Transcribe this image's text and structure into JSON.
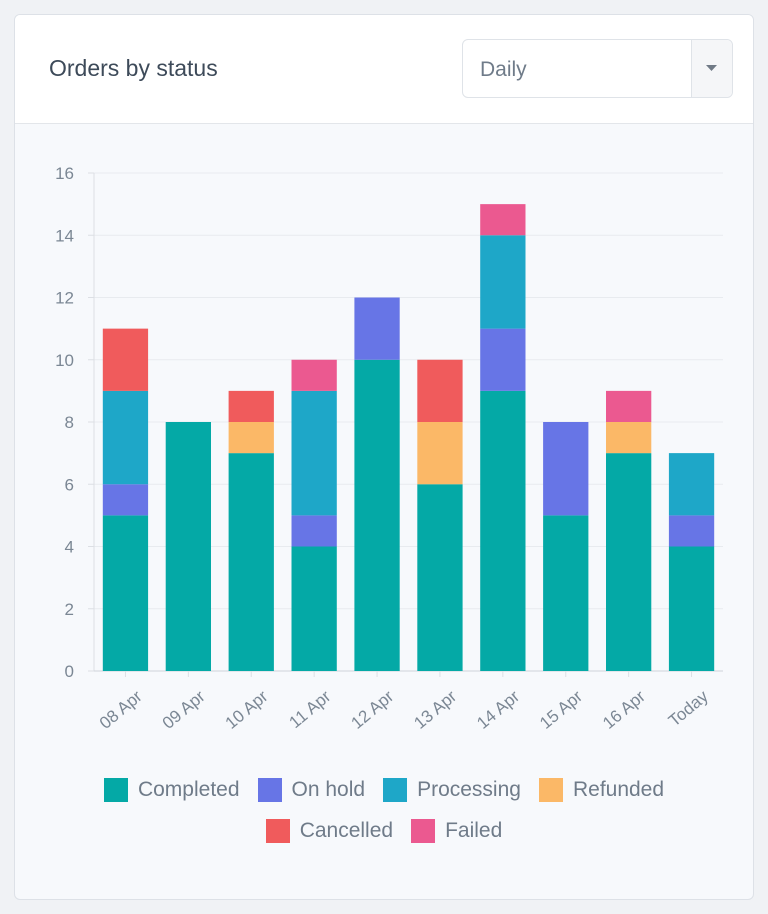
{
  "header": {
    "title": "Orders by status",
    "period_select": {
      "value": "Daily"
    }
  },
  "chart_data": {
    "type": "bar",
    "stacked": true,
    "categories": [
      "08 Apr",
      "09 Apr",
      "10 Apr",
      "11 Apr",
      "12 Apr",
      "13 Apr",
      "14 Apr",
      "15 Apr",
      "16 Apr",
      "Today"
    ],
    "ylim": [
      0,
      16
    ],
    "yticks": [
      0,
      2,
      4,
      6,
      8,
      10,
      12,
      14,
      16
    ],
    "grid": true,
    "legend_position": "bottom",
    "series": [
      {
        "name": "Completed",
        "color": "#04a9a6",
        "values": [
          5,
          8,
          7,
          4,
          10,
          6,
          9,
          5,
          7,
          4
        ]
      },
      {
        "name": "On hold",
        "color": "#6775e6",
        "values": [
          1,
          0,
          0,
          1,
          2,
          0,
          2,
          3,
          0,
          1
        ]
      },
      {
        "name": "Processing",
        "color": "#1ea7c8",
        "values": [
          3,
          0,
          0,
          4,
          0,
          0,
          3,
          0,
          0,
          2
        ]
      },
      {
        "name": "Refunded",
        "color": "#fbb867",
        "values": [
          0,
          0,
          1,
          0,
          0,
          2,
          0,
          0,
          1,
          0
        ]
      },
      {
        "name": "Cancelled",
        "color": "#f05b5c",
        "values": [
          2,
          0,
          1,
          0,
          0,
          2,
          0,
          0,
          0,
          0
        ]
      },
      {
        "name": "Failed",
        "color": "#eb5990",
        "values": [
          0,
          0,
          0,
          1,
          0,
          0,
          1,
          0,
          1,
          0
        ]
      }
    ]
  }
}
